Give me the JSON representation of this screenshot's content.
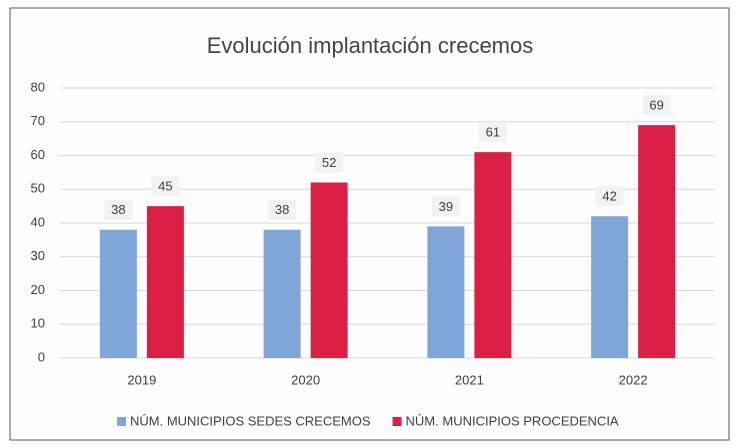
{
  "chart_data": {
    "type": "bar",
    "title": "Evolución implantación crecemos",
    "categories": [
      "2019",
      "2020",
      "2021",
      "2022"
    ],
    "series": [
      {
        "name": "NÚM. MUNICIPIOS SEDES CRECEMOS",
        "color": "#7fa6d6",
        "values": [
          38,
          38,
          39,
          42
        ]
      },
      {
        "name": "NÚM. MUNICIPIOS PROCEDENCIA",
        "color": "#dc1f45",
        "values": [
          45,
          52,
          61,
          69
        ]
      }
    ],
    "ylim": [
      0,
      80
    ],
    "yticks": [
      0,
      10,
      20,
      30,
      40,
      50,
      60,
      70,
      80
    ],
    "grid": true,
    "legend": "bottom"
  }
}
